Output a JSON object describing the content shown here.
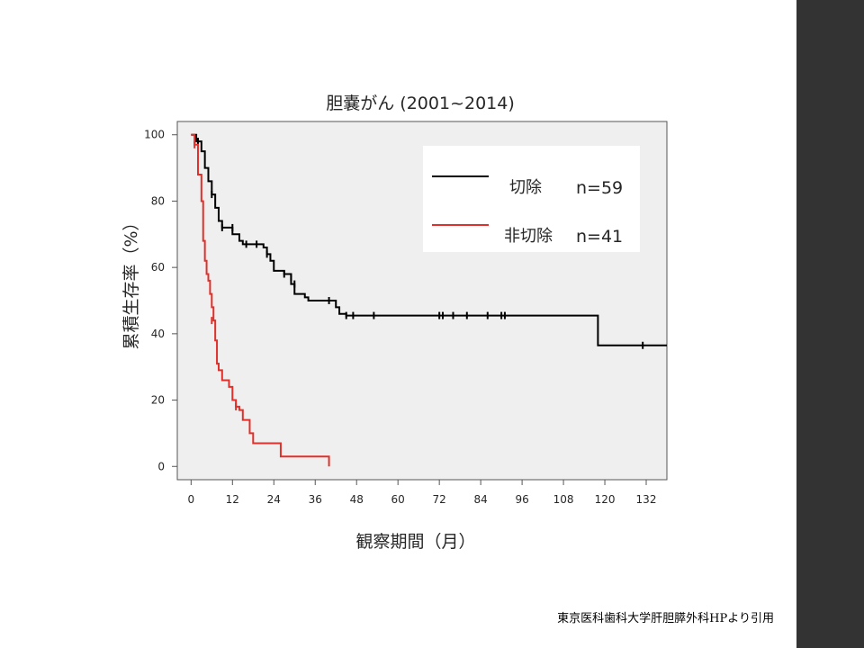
{
  "colors": {
    "sidebar": "#333333",
    "plot_bg": "#efefef",
    "legend_bg": "#ffffff",
    "resection": "#000000",
    "non_resection": "#e0302b"
  },
  "source_note": "東京医科歯科大学肝胆膵外科HPより引用",
  "chart_data": {
    "type": "line",
    "step": true,
    "title": "胆嚢がん (2001~2014)",
    "xlabel": "観察期間（月）",
    "ylabel": "累積生存率（%）",
    "xlim": [
      -4,
      138
    ],
    "ylim": [
      -4,
      104
    ],
    "xticks": [
      0,
      12,
      24,
      36,
      48,
      60,
      72,
      84,
      96,
      108,
      120,
      132
    ],
    "xtick_labels": [
      "0",
      "12",
      "24",
      "36",
      "48",
      "60",
      "72",
      "84",
      "96",
      "108",
      "120",
      "132"
    ],
    "yticks": [
      0,
      20,
      40,
      60,
      80,
      100
    ],
    "ytick_labels": [
      "0",
      "20",
      "40",
      "60",
      "80",
      "100"
    ],
    "grid": false,
    "legend_position": "top-right",
    "legend": [
      {
        "label": "切除",
        "n": "n=59"
      },
      {
        "label": "非切除",
        "n": "n=41"
      }
    ],
    "series": [
      {
        "name": "切除",
        "color": "#000000",
        "points": [
          [
            0,
            100
          ],
          [
            1.5,
            98
          ],
          [
            3,
            95
          ],
          [
            4,
            90
          ],
          [
            5,
            86
          ],
          [
            6,
            82
          ],
          [
            7,
            78
          ],
          [
            8,
            74
          ],
          [
            9,
            72
          ],
          [
            11,
            72
          ],
          [
            12,
            70
          ],
          [
            14,
            68
          ],
          [
            15,
            67
          ],
          [
            21,
            66
          ],
          [
            22,
            64
          ],
          [
            23,
            62
          ],
          [
            24,
            59
          ],
          [
            26,
            59
          ],
          [
            27,
            58
          ],
          [
            29,
            55
          ],
          [
            30,
            52
          ],
          [
            33,
            51
          ],
          [
            34,
            50
          ],
          [
            42,
            48
          ],
          [
            43,
            46
          ],
          [
            45,
            45.5
          ],
          [
            118,
            45.5
          ],
          [
            118,
            36.5
          ],
          [
            138,
            36.5
          ]
        ],
        "censors": [
          [
            2,
            98
          ],
          [
            6,
            82
          ],
          [
            9,
            72
          ],
          [
            12,
            72
          ],
          [
            16,
            67
          ],
          [
            19,
            67
          ],
          [
            22,
            64
          ],
          [
            27,
            58
          ],
          [
            29,
            57
          ],
          [
            30,
            55
          ],
          [
            40,
            50
          ],
          [
            45,
            45.5
          ],
          [
            47,
            45.5
          ],
          [
            53,
            45.5
          ],
          [
            72,
            45.5
          ],
          [
            73,
            45.5
          ],
          [
            76,
            45.5
          ],
          [
            80,
            45.5
          ],
          [
            86,
            45.5
          ],
          [
            90,
            45.5
          ],
          [
            91,
            45.5
          ],
          [
            131,
            36.5
          ]
        ]
      },
      {
        "name": "非切除",
        "color": "#e0302b",
        "points": [
          [
            0,
            100
          ],
          [
            1,
            97
          ],
          [
            2,
            88
          ],
          [
            3,
            80
          ],
          [
            3.5,
            68
          ],
          [
            4,
            62
          ],
          [
            4.5,
            58
          ],
          [
            5,
            56
          ],
          [
            5.5,
            52
          ],
          [
            6,
            48
          ],
          [
            6.5,
            44
          ],
          [
            7,
            38
          ],
          [
            7.5,
            31
          ],
          [
            8,
            29
          ],
          [
            9,
            26
          ],
          [
            11,
            24
          ],
          [
            12,
            20
          ],
          [
            13,
            18
          ],
          [
            14,
            17
          ],
          [
            15,
            14
          ],
          [
            17,
            10
          ],
          [
            18,
            7
          ],
          [
            26,
            3
          ],
          [
            40,
            3
          ],
          [
            40,
            0
          ]
        ],
        "censors": [
          [
            1,
            97
          ],
          [
            6,
            44
          ],
          [
            13,
            18
          ]
        ]
      }
    ]
  }
}
